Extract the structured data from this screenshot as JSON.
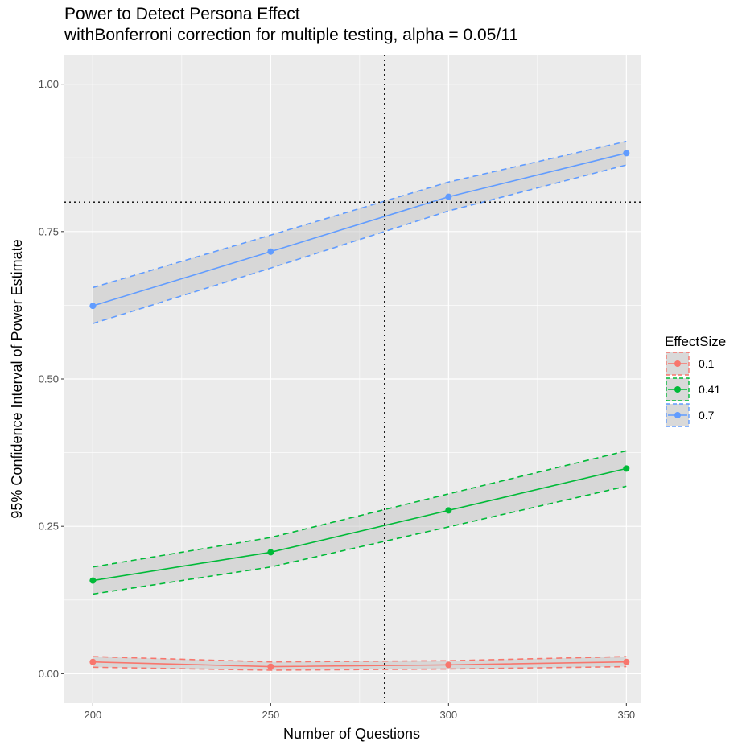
{
  "chart_data": {
    "type": "line",
    "title": "Power to Detect Persona Effect",
    "subtitle": "withBonferroni correction for multiple testing, alpha = 0.05/11",
    "xlabel": "Number of Questions",
    "ylabel": "95% Confidence Interval of Power Estimate",
    "x": [
      200,
      250,
      300,
      350
    ],
    "x_ticks": [
      200,
      250,
      300,
      350
    ],
    "y_ticks": [
      "0.00",
      "0.25",
      "0.50",
      "0.75",
      "1.00"
    ],
    "xlim": [
      192,
      354
    ],
    "ylim": [
      -0.05,
      1.05
    ],
    "grid": true,
    "legend_title": "EffectSize",
    "legend_position": "right",
    "reference_lines": {
      "vertical_x": 282,
      "horizontal_y": 0.8
    },
    "series": [
      {
        "name": "0.1",
        "color": "#F8766D",
        "values": [
          0.02,
          0.012,
          0.015,
          0.02
        ],
        "lower": [
          0.011,
          0.006,
          0.008,
          0.012
        ],
        "upper": [
          0.029,
          0.02,
          0.022,
          0.029
        ]
      },
      {
        "name": "0.41",
        "color": "#00BA38",
        "values": [
          0.158,
          0.206,
          0.277,
          0.348
        ],
        "lower": [
          0.135,
          0.181,
          0.249,
          0.318
        ],
        "upper": [
          0.181,
          0.231,
          0.305,
          0.378
        ]
      },
      {
        "name": "0.7",
        "color": "#619CFF",
        "values": [
          0.624,
          0.716,
          0.809,
          0.883
        ],
        "lower": [
          0.594,
          0.688,
          0.785,
          0.863
        ],
        "upper": [
          0.655,
          0.744,
          0.834,
          0.903
        ]
      }
    ]
  }
}
